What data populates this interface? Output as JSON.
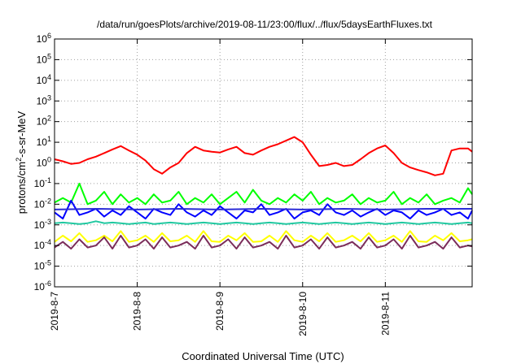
{
  "chart_data": {
    "type": "line",
    "title": "/data/run/goesPlots/archive/2019-08-11/23:00/flux/../flux/5daysEarthFluxes.txt",
    "xlabel": "Coordinated Universal Time (UTC)",
    "ylabel": {
      "base": "protons/cm",
      "sup": "2",
      "rest": "-s-sr-MeV"
    },
    "yscale": "log",
    "ylim": [
      -6,
      6
    ],
    "xlim": [
      0,
      5.05
    ],
    "grid": true,
    "legend": "none",
    "x_ticks": [
      {
        "x": 0,
        "label": "2019-8-7"
      },
      {
        "x": 1,
        "label": "2019-8-8"
      },
      {
        "x": 2,
        "label": "2019-8-9"
      },
      {
        "x": 3,
        "label": "2019-8-10"
      },
      {
        "x": 4,
        "label": "2019-8-11"
      }
    ],
    "y_ticks": [
      {
        "e": 6,
        "base": "10",
        "exp": "6"
      },
      {
        "e": 5,
        "base": "10",
        "exp": "5"
      },
      {
        "e": 4,
        "base": "10",
        "exp": "4"
      },
      {
        "e": 3,
        "base": "10",
        "exp": "3"
      },
      {
        "e": 2,
        "base": "10",
        "exp": "2"
      },
      {
        "e": 1,
        "base": "10",
        "exp": "1"
      },
      {
        "e": 0,
        "base": "10",
        "exp": "0"
      },
      {
        "e": -1,
        "base": "10",
        "exp": "-1"
      },
      {
        "e": -2,
        "base": "10",
        "exp": "-2"
      },
      {
        "e": -3,
        "base": "10",
        "exp": "-3"
      },
      {
        "e": -4,
        "base": "10",
        "exp": "-4"
      },
      {
        "e": -5,
        "base": "10",
        "exp": "-5"
      },
      {
        "e": -6,
        "base": "10",
        "exp": "-6"
      }
    ],
    "series": [
      {
        "color": "#ff0000",
        "x": [
          0,
          0.1,
          0.2,
          0.3,
          0.4,
          0.5,
          0.6,
          0.7,
          0.8,
          0.9,
          1.0,
          1.1,
          1.2,
          1.3,
          1.4,
          1.5,
          1.6,
          1.7,
          1.8,
          1.9,
          2.0,
          2.1,
          2.2,
          2.3,
          2.4,
          2.5,
          2.6,
          2.7,
          2.8,
          2.9,
          3.0,
          3.1,
          3.2,
          3.3,
          3.4,
          3.5,
          3.6,
          3.7,
          3.8,
          3.9,
          4.0,
          4.1,
          4.2,
          4.3,
          4.4,
          4.5,
          4.6,
          4.7,
          4.8,
          4.9,
          5.0,
          5.05
        ],
        "y": [
          1.5,
          1.2,
          0.9,
          1.0,
          1.5,
          2.0,
          3.0,
          4.5,
          6.5,
          4.0,
          2.5,
          1.3,
          0.5,
          0.3,
          0.6,
          1.0,
          3.0,
          6.0,
          4.0,
          3.5,
          3.2,
          4.5,
          6.0,
          3.0,
          2.5,
          4.0,
          6.0,
          8.0,
          12.0,
          18.0,
          10.0,
          2.5,
          0.7,
          0.8,
          1.0,
          0.7,
          0.8,
          1.5,
          3.0,
          5.0,
          7.0,
          3.0,
          1.0,
          0.6,
          0.45,
          0.35,
          0.25,
          0.3,
          4.0,
          5.0,
          5.0,
          3.5
        ]
      },
      {
        "color": "#00ff00",
        "x": [
          0,
          0.1,
          0.2,
          0.3,
          0.4,
          0.5,
          0.6,
          0.7,
          0.8,
          0.9,
          1.0,
          1.1,
          1.2,
          1.3,
          1.4,
          1.5,
          1.6,
          1.7,
          1.8,
          1.9,
          2.0,
          2.1,
          2.2,
          2.3,
          2.4,
          2.5,
          2.6,
          2.7,
          2.8,
          2.9,
          3.0,
          3.1,
          3.2,
          3.3,
          3.4,
          3.5,
          3.6,
          3.7,
          3.8,
          3.9,
          4.0,
          4.1,
          4.2,
          4.3,
          4.4,
          4.5,
          4.6,
          4.7,
          4.8,
          4.9,
          5.0,
          5.05
        ],
        "y": [
          0.012,
          0.02,
          0.012,
          0.1,
          0.01,
          0.015,
          0.04,
          0.01,
          0.03,
          0.012,
          0.02,
          0.01,
          0.03,
          0.012,
          0.015,
          0.04,
          0.01,
          0.02,
          0.012,
          0.03,
          0.01,
          0.02,
          0.04,
          0.012,
          0.05,
          0.015,
          0.01,
          0.02,
          0.012,
          0.03,
          0.015,
          0.04,
          0.01,
          0.02,
          0.012,
          0.015,
          0.03,
          0.01,
          0.02,
          0.012,
          0.015,
          0.04,
          0.01,
          0.02,
          0.012,
          0.03,
          0.01,
          0.015,
          0.02,
          0.012,
          0.06,
          0.03
        ]
      },
      {
        "color": "#0000ff",
        "x": [
          0,
          0.1,
          0.2,
          0.3,
          0.4,
          0.5,
          0.6,
          0.7,
          0.8,
          0.9,
          1.0,
          1.1,
          1.2,
          1.3,
          1.4,
          1.5,
          1.6,
          1.7,
          1.8,
          1.9,
          2.0,
          2.1,
          2.2,
          2.3,
          2.4,
          2.5,
          2.6,
          2.7,
          2.8,
          2.9,
          3.0,
          3.1,
          3.2,
          3.3,
          3.4,
          3.5,
          3.6,
          3.7,
          3.8,
          3.9,
          4.0,
          4.1,
          4.2,
          4.3,
          4.4,
          4.5,
          4.6,
          4.7,
          4.8,
          4.9,
          5.0,
          5.05
        ],
        "y": [
          0.004,
          0.002,
          0.015,
          0.003,
          0.004,
          0.006,
          0.0025,
          0.005,
          0.003,
          0.008,
          0.004,
          0.002,
          0.006,
          0.004,
          0.003,
          0.01,
          0.004,
          0.0025,
          0.005,
          0.003,
          0.008,
          0.004,
          0.002,
          0.005,
          0.004,
          0.01,
          0.003,
          0.004,
          0.006,
          0.002,
          0.004,
          0.005,
          0.003,
          0.01,
          0.004,
          0.003,
          0.005,
          0.0025,
          0.004,
          0.006,
          0.003,
          0.005,
          0.004,
          0.002,
          0.005,
          0.003,
          0.004,
          0.006,
          0.003,
          0.004,
          0.002,
          0.005
        ]
      },
      {
        "color": "#2b2bd6",
        "x": [
          0,
          0.5,
          1.0,
          1.5,
          2.0,
          2.5,
          3.0,
          3.5,
          4.0,
          4.5,
          5.05
        ],
        "y": [
          0.0055,
          0.006,
          0.0055,
          0.006,
          0.0055,
          0.006,
          0.0055,
          0.006,
          0.0055,
          0.006,
          0.006
        ]
      },
      {
        "color": "#20c8a0",
        "x": [
          0,
          0.1,
          0.2,
          0.3,
          0.4,
          0.5,
          0.6,
          0.7,
          0.8,
          0.9,
          1.0,
          1.1,
          1.2,
          1.3,
          1.4,
          1.5,
          1.6,
          1.7,
          1.8,
          1.9,
          2.0,
          2.1,
          2.2,
          2.3,
          2.4,
          2.5,
          2.6,
          2.7,
          2.8,
          2.9,
          3.0,
          3.1,
          3.2,
          3.3,
          3.4,
          3.5,
          3.6,
          3.7,
          3.8,
          3.9,
          4.0,
          4.1,
          4.2,
          4.3,
          4.4,
          4.5,
          4.6,
          4.7,
          4.8,
          4.9,
          5.0,
          5.05
        ],
        "y": [
          0.0012,
          0.0013,
          0.0012,
          0.0011,
          0.0012,
          0.0015,
          0.0012,
          0.0013,
          0.0012,
          0.0011,
          0.0012,
          0.0013,
          0.0011,
          0.0012,
          0.0013,
          0.0012,
          0.0011,
          0.0012,
          0.0013,
          0.0012,
          0.0011,
          0.0012,
          0.0013,
          0.0012,
          0.0011,
          0.0012,
          0.0013,
          0.0012,
          0.0011,
          0.0012,
          0.0013,
          0.0012,
          0.0011,
          0.0012,
          0.0013,
          0.0012,
          0.0011,
          0.0012,
          0.0013,
          0.0012,
          0.0011,
          0.0012,
          0.0013,
          0.0012,
          0.0011,
          0.0012,
          0.0013,
          0.0012,
          0.0011,
          0.0012,
          0.0013,
          0.0012
        ]
      },
      {
        "color": "#ffff00",
        "x": [
          0,
          0.1,
          0.2,
          0.3,
          0.4,
          0.5,
          0.6,
          0.7,
          0.8,
          0.9,
          1.0,
          1.1,
          1.2,
          1.3,
          1.4,
          1.5,
          1.6,
          1.7,
          1.8,
          1.9,
          2.0,
          2.1,
          2.2,
          2.3,
          2.4,
          2.5,
          2.6,
          2.7,
          2.8,
          2.9,
          3.0,
          3.1,
          3.2,
          3.3,
          3.4,
          3.5,
          3.6,
          3.7,
          3.8,
          3.9,
          4.0,
          4.1,
          4.2,
          4.3,
          4.4,
          4.5,
          4.6,
          4.7,
          4.8,
          4.9,
          5.0,
          5.05
        ],
        "y": [
          0.00015,
          0.0003,
          0.00016,
          0.0004,
          0.00015,
          0.00018,
          0.0003,
          0.00016,
          0.0005,
          0.00015,
          0.00018,
          0.0003,
          0.00015,
          0.0004,
          0.00016,
          0.00018,
          0.0003,
          0.00015,
          0.0005,
          0.00016,
          0.00015,
          0.0003,
          0.00018,
          0.0004,
          0.00015,
          0.00016,
          0.0003,
          0.00015,
          0.0005,
          0.00018,
          0.00015,
          0.0003,
          0.00016,
          0.0004,
          0.00015,
          0.00018,
          0.0003,
          0.00016,
          0.0004,
          0.00015,
          0.00018,
          0.0003,
          0.00015,
          0.0005,
          0.00016,
          0.00015,
          0.0003,
          0.00018,
          0.0004,
          0.00016,
          0.00018,
          0.0002
        ]
      },
      {
        "color": "#7b2d5a",
        "x": [
          0,
          0.1,
          0.2,
          0.3,
          0.4,
          0.5,
          0.6,
          0.7,
          0.8,
          0.9,
          1.0,
          1.1,
          1.2,
          1.3,
          1.4,
          1.5,
          1.6,
          1.7,
          1.8,
          1.9,
          2.0,
          2.1,
          2.2,
          2.3,
          2.4,
          2.5,
          2.6,
          2.7,
          2.8,
          2.9,
          3.0,
          3.1,
          3.2,
          3.3,
          3.4,
          3.5,
          3.6,
          3.7,
          3.8,
          3.9,
          4.0,
          4.1,
          4.2,
          4.3,
          4.4,
          4.5,
          4.6,
          4.7,
          4.8,
          4.9,
          5.0,
          5.05
        ],
        "y": [
          8e-05,
          0.00015,
          7e-05,
          0.0002,
          8e-05,
          0.0001,
          0.00025,
          7e-05,
          0.0003,
          8e-05,
          0.0001,
          0.0002,
          7e-05,
          0.00025,
          8e-05,
          0.0001,
          0.00015,
          7e-05,
          0.0003,
          8e-05,
          0.0001,
          0.0002,
          7e-05,
          0.00025,
          8e-05,
          0.0001,
          0.00015,
          7e-05,
          0.0003,
          8e-05,
          0.0001,
          0.0002,
          7e-05,
          0.00025,
          8e-05,
          0.0001,
          0.00015,
          7e-05,
          0.00025,
          8e-05,
          0.0001,
          0.0002,
          7e-05,
          0.0003,
          8e-05,
          0.0001,
          0.00015,
          7e-05,
          0.00025,
          8e-05,
          0.0001,
          9e-05
        ]
      }
    ]
  }
}
